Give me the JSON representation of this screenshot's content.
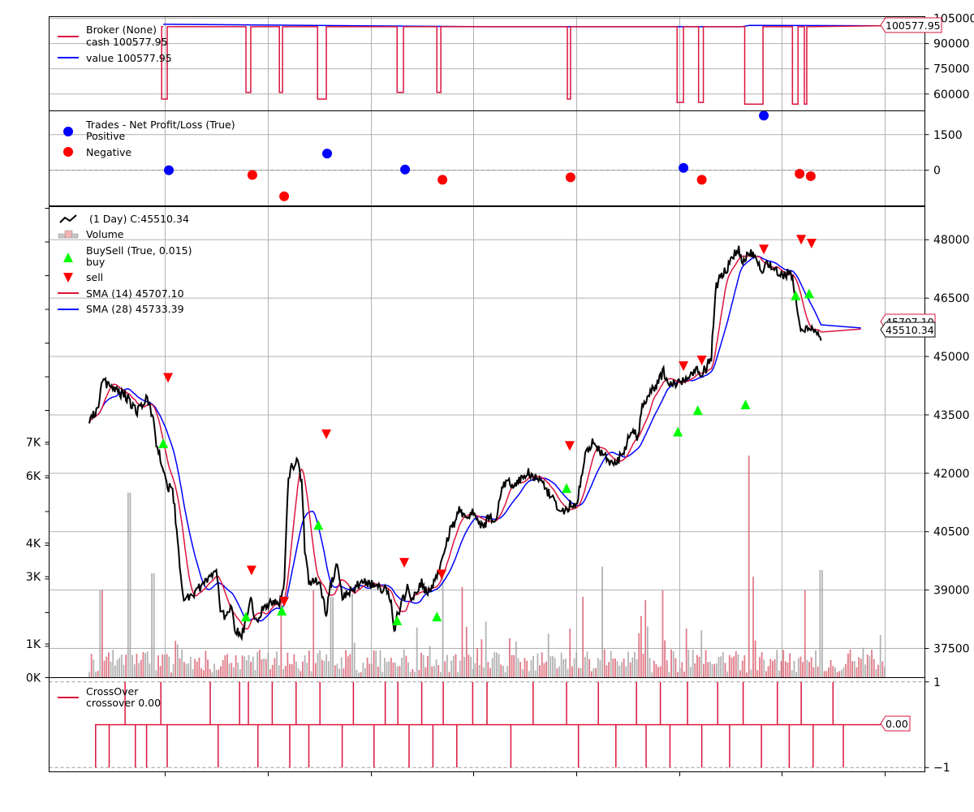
{
  "chart_data": [
    {
      "type": "line",
      "panel": "broker",
      "legend": {
        "title": "Broker (None)",
        "cash_label": "cash 100577.95",
        "value_label": "value 100577.95"
      },
      "badge_label": "100577.95",
      "y_ticks": [
        "105000",
        "90000",
        "75000",
        "60000"
      ],
      "y_tick_values": [
        105000,
        90000,
        75000,
        60000
      ],
      "ylim": [
        50000,
        106000
      ],
      "cash_base": 100000,
      "final_value": 100577.95,
      "dips": [
        {
          "start": 0.091,
          "end": 0.098,
          "low": 57000
        },
        {
          "start": 0.197,
          "end": 0.203,
          "low": 61000
        },
        {
          "start": 0.239,
          "end": 0.243,
          "low": 61000
        },
        {
          "start": 0.287,
          "end": 0.298,
          "low": 57000
        },
        {
          "start": 0.387,
          "end": 0.395,
          "low": 61000
        },
        {
          "start": 0.437,
          "end": 0.442,
          "low": 61000
        },
        {
          "start": 0.601,
          "end": 0.605,
          "low": 57000
        },
        {
          "start": 0.739,
          "end": 0.747,
          "low": 55000
        },
        {
          "start": 0.766,
          "end": 0.772,
          "low": 55000
        },
        {
          "start": 0.824,
          "end": 0.847,
          "low": 54000
        },
        {
          "start": 0.884,
          "end": 0.891,
          "low": 54000
        },
        {
          "start": 0.899,
          "end": 0.902,
          "low": 54000
        }
      ]
    },
    {
      "type": "scatter",
      "panel": "trades",
      "legend": {
        "title": "Trades - Net Profit/Loss (True)",
        "positive_label": "Positive",
        "negative_label": "Negative"
      },
      "y_ticks": [
        "1500",
        "0"
      ],
      "y_tick_values": [
        1500,
        0
      ],
      "ylim": [
        -1500,
        2500
      ],
      "positive": [
        {
          "x": 0.1,
          "y": 0
        },
        {
          "x": 0.299,
          "y": 700
        },
        {
          "x": 0.397,
          "y": 30
        },
        {
          "x": 0.747,
          "y": 100
        },
        {
          "x": 0.848,
          "y": 2300
        }
      ],
      "negative": [
        {
          "x": 0.205,
          "y": -200
        },
        {
          "x": 0.245,
          "y": -1100
        },
        {
          "x": 0.444,
          "y": -400
        },
        {
          "x": 0.605,
          "y": -300
        },
        {
          "x": 0.77,
          "y": -400
        },
        {
          "x": 0.893,
          "y": -150
        },
        {
          "x": 0.907,
          "y": -250
        }
      ]
    },
    {
      "type": "line",
      "panel": "price",
      "legend": {
        "price_label": " (1 Day) C:45510.34",
        "volume_label": "Volume",
        "buysell_label": "BuySell (True, 0.015)",
        "buy_label": "buy",
        "sell_label": "sell",
        "sma14_label": "SMA (14) 45707.10",
        "sma28_label": "SMA (28) 45733.39"
      },
      "y_ticks_right": [
        "48000",
        "46500",
        "45000",
        "43500",
        "42000",
        "40500",
        "39000",
        "37500"
      ],
      "y_tick_values_right": [
        48000,
        46500,
        45000,
        43500,
        42000,
        40500,
        39000,
        37500
      ],
      "ylim_right": [
        36750,
        48850
      ],
      "y_ticks_left": [
        "7K",
        "6K",
        "4K",
        "3K",
        "1K",
        "0K"
      ],
      "y_tick_values_left": [
        7000,
        6000,
        4000,
        3000,
        1000,
        0
      ],
      "ylim_left": [
        0,
        14000
      ],
      "sma14_badge": "45707.10",
      "close_badge": "45510.34",
      "close_keypoints": [
        [
          0.0,
          43400
        ],
        [
          0.012,
          43700
        ],
        [
          0.016,
          44400
        ],
        [
          0.028,
          44200
        ],
        [
          0.045,
          44000
        ],
        [
          0.06,
          43600
        ],
        [
          0.072,
          43900
        ],
        [
          0.08,
          43500
        ],
        [
          0.085,
          42700
        ],
        [
          0.092,
          42200
        ],
        [
          0.099,
          41500
        ],
        [
          0.103,
          41800
        ],
        [
          0.107,
          41200
        ],
        [
          0.113,
          39800
        ],
        [
          0.118,
          38800
        ],
        [
          0.125,
          38800
        ],
        [
          0.135,
          39000
        ],
        [
          0.15,
          39300
        ],
        [
          0.16,
          39500
        ],
        [
          0.165,
          38500
        ],
        [
          0.172,
          38200
        ],
        [
          0.178,
          38700
        ],
        [
          0.183,
          38000
        ],
        [
          0.191,
          37800
        ],
        [
          0.196,
          38100
        ],
        [
          0.202,
          38800
        ],
        [
          0.21,
          38200
        ],
        [
          0.22,
          38600
        ],
        [
          0.232,
          38700
        ],
        [
          0.24,
          38700
        ],
        [
          0.245,
          39200
        ],
        [
          0.25,
          41800
        ],
        [
          0.255,
          42200
        ],
        [
          0.262,
          42300
        ],
        [
          0.267,
          41800
        ],
        [
          0.271,
          40000
        ],
        [
          0.276,
          39200
        ],
        [
          0.285,
          39300
        ],
        [
          0.292,
          39000
        ],
        [
          0.298,
          38400
        ],
        [
          0.305,
          39300
        ],
        [
          0.312,
          39600
        ],
        [
          0.318,
          38800
        ],
        [
          0.325,
          38900
        ],
        [
          0.335,
          39100
        ],
        [
          0.345,
          39200
        ],
        [
          0.36,
          39100
        ],
        [
          0.372,
          39000
        ],
        [
          0.38,
          38700
        ],
        [
          0.383,
          37900
        ],
        [
          0.388,
          38400
        ],
        [
          0.394,
          38700
        ],
        [
          0.4,
          39100
        ],
        [
          0.405,
          38800
        ],
        [
          0.412,
          38900
        ],
        [
          0.418,
          39200
        ],
        [
          0.422,
          39000
        ],
        [
          0.43,
          39000
        ],
        [
          0.437,
          39300
        ],
        [
          0.445,
          39900
        ],
        [
          0.45,
          40300
        ],
        [
          0.455,
          40600
        ],
        [
          0.46,
          40700
        ],
        [
          0.466,
          41100
        ],
        [
          0.472,
          40900
        ],
        [
          0.48,
          41000
        ],
        [
          0.488,
          40800
        ],
        [
          0.495,
          40600
        ],
        [
          0.503,
          40900
        ],
        [
          0.51,
          40700
        ],
        [
          0.518,
          41600
        ],
        [
          0.525,
          41800
        ],
        [
          0.535,
          41700
        ],
        [
          0.545,
          41900
        ],
        [
          0.552,
          42000
        ],
        [
          0.56,
          41900
        ],
        [
          0.57,
          41700
        ],
        [
          0.58,
          41400
        ],
        [
          0.588,
          41100
        ],
        [
          0.595,
          41000
        ],
        [
          0.605,
          41200
        ],
        [
          0.612,
          41100
        ],
        [
          0.618,
          41800
        ],
        [
          0.624,
          42500
        ],
        [
          0.632,
          42800
        ],
        [
          0.64,
          42600
        ],
        [
          0.65,
          42400
        ],
        [
          0.656,
          42200
        ],
        [
          0.663,
          42300
        ],
        [
          0.67,
          42500
        ],
        [
          0.678,
          42900
        ],
        [
          0.684,
          43100
        ],
        [
          0.69,
          42900
        ],
        [
          0.695,
          43800
        ],
        [
          0.703,
          44000
        ],
        [
          0.71,
          44200
        ],
        [
          0.716,
          44400
        ],
        [
          0.722,
          44600
        ],
        [
          0.73,
          44300
        ],
        [
          0.738,
          44300
        ],
        [
          0.746,
          44400
        ],
        [
          0.754,
          44500
        ],
        [
          0.762,
          44700
        ],
        [
          0.77,
          44600
        ],
        [
          0.776,
          44700
        ],
        [
          0.782,
          45000
        ],
        [
          0.787,
          46700
        ],
        [
          0.792,
          47000
        ],
        [
          0.8,
          47200
        ],
        [
          0.808,
          47500
        ],
        [
          0.816,
          47800
        ],
        [
          0.822,
          47400
        ],
        [
          0.83,
          47700
        ],
        [
          0.838,
          47600
        ],
        [
          0.845,
          47200
        ],
        [
          0.852,
          47400
        ],
        [
          0.86,
          47300
        ],
        [
          0.868,
          47100
        ],
        [
          0.876,
          47100
        ],
        [
          0.882,
          47200
        ],
        [
          0.887,
          46600
        ],
        [
          0.892,
          45900
        ],
        [
          0.896,
          45600
        ],
        [
          0.905,
          45800
        ],
        [
          0.92,
          45510
        ]
      ],
      "buy_markers": [
        {
          "x": 0.093,
          "y": 42750
        },
        {
          "x": 0.197,
          "y": 38300
        },
        {
          "x": 0.242,
          "y": 38450
        },
        {
          "x": 0.288,
          "y": 40650
        },
        {
          "x": 0.387,
          "y": 38200
        },
        {
          "x": 0.437,
          "y": 38300
        },
        {
          "x": 0.6,
          "y": 41600
        },
        {
          "x": 0.74,
          "y": 43050
        },
        {
          "x": 0.765,
          "y": 43600
        },
        {
          "x": 0.825,
          "y": 43750
        },
        {
          "x": 0.888,
          "y": 46550
        },
        {
          "x": 0.905,
          "y": 46600
        }
      ],
      "sell_markers": [
        {
          "x": 0.099,
          "y": 44450
        },
        {
          "x": 0.204,
          "y": 39500
        },
        {
          "x": 0.245,
          "y": 38700
        },
        {
          "x": 0.298,
          "y": 43000
        },
        {
          "x": 0.396,
          "y": 39700
        },
        {
          "x": 0.443,
          "y": 39400
        },
        {
          "x": 0.604,
          "y": 42700
        },
        {
          "x": 0.747,
          "y": 44750
        },
        {
          "x": 0.77,
          "y": 44900
        },
        {
          "x": 0.848,
          "y": 47750
        },
        {
          "x": 0.895,
          "y": 48000
        },
        {
          "x": 0.908,
          "y": 47900
        }
      ],
      "volume_spikes": [
        {
          "x": 0.015,
          "v": 2600
        },
        {
          "x": 0.05,
          "v": 5500
        },
        {
          "x": 0.08,
          "v": 3100
        },
        {
          "x": 0.24,
          "v": 2300
        },
        {
          "x": 0.283,
          "v": 2600
        },
        {
          "x": 0.305,
          "v": 2400
        },
        {
          "x": 0.33,
          "v": 2500
        },
        {
          "x": 0.445,
          "v": 3100
        },
        {
          "x": 0.47,
          "v": 2700
        },
        {
          "x": 0.62,
          "v": 2400
        },
        {
          "x": 0.645,
          "v": 3300
        },
        {
          "x": 0.7,
          "v": 2300
        },
        {
          "x": 0.72,
          "v": 2600
        },
        {
          "x": 0.83,
          "v": 6600
        },
        {
          "x": 0.835,
          "v": 3000
        },
        {
          "x": 0.9,
          "v": 2600
        },
        {
          "x": 0.92,
          "v": 3200
        }
      ]
    },
    {
      "type": "line",
      "panel": "crossover",
      "legend": {
        "title": "CrossOver",
        "value_label": "crossover 0.00"
      },
      "badge_label": "0.00",
      "y_ticks": [
        "1",
        "−1"
      ],
      "y_tick_values": [
        1,
        -1
      ],
      "ylim": [
        -1.1,
        1.1
      ],
      "events": [
        {
          "x": 0.008,
          "d": -1
        },
        {
          "x": 0.025,
          "d": -1
        },
        {
          "x": 0.045,
          "d": 1
        },
        {
          "x": 0.058,
          "d": -1
        },
        {
          "x": 0.072,
          "d": -1
        },
        {
          "x": 0.09,
          "d": 1
        },
        {
          "x": 0.098,
          "d": -1
        },
        {
          "x": 0.152,
          "d": 1
        },
        {
          "x": 0.162,
          "d": -1
        },
        {
          "x": 0.189,
          "d": 1
        },
        {
          "x": 0.2,
          "d": 1
        },
        {
          "x": 0.212,
          "d": -1
        },
        {
          "x": 0.23,
          "d": 1
        },
        {
          "x": 0.252,
          "d": -1
        },
        {
          "x": 0.26,
          "d": 1
        },
        {
          "x": 0.276,
          "d": -1
        },
        {
          "x": 0.29,
          "d": 1
        },
        {
          "x": 0.318,
          "d": -1
        },
        {
          "x": 0.332,
          "d": 1
        },
        {
          "x": 0.358,
          "d": -1
        },
        {
          "x": 0.372,
          "d": 1
        },
        {
          "x": 0.388,
          "d": 1
        },
        {
          "x": 0.402,
          "d": -1
        },
        {
          "x": 0.418,
          "d": 1
        },
        {
          "x": 0.432,
          "d": -1
        },
        {
          "x": 0.445,
          "d": 1
        },
        {
          "x": 0.462,
          "d": -1
        },
        {
          "x": 0.482,
          "d": 1
        },
        {
          "x": 0.5,
          "d": 1
        },
        {
          "x": 0.53,
          "d": -1
        },
        {
          "x": 0.558,
          "d": 1
        },
        {
          "x": 0.6,
          "d": 1
        },
        {
          "x": 0.615,
          "d": -1
        },
        {
          "x": 0.64,
          "d": 1
        },
        {
          "x": 0.662,
          "d": -1
        },
        {
          "x": 0.688,
          "d": 1
        },
        {
          "x": 0.7,
          "d": -1
        },
        {
          "x": 0.718,
          "d": 1
        },
        {
          "x": 0.73,
          "d": -1
        },
        {
          "x": 0.752,
          "d": 1
        },
        {
          "x": 0.77,
          "d": -1
        },
        {
          "x": 0.79,
          "d": 1
        },
        {
          "x": 0.805,
          "d": -1
        },
        {
          "x": 0.822,
          "d": 1
        },
        {
          "x": 0.845,
          "d": -1
        },
        {
          "x": 0.865,
          "d": 1
        },
        {
          "x": 0.88,
          "d": -1
        },
        {
          "x": 0.895,
          "d": 1
        },
        {
          "x": 0.91,
          "d": -1
        },
        {
          "x": 0.935,
          "d": 1
        },
        {
          "x": 0.948,
          "d": -1
        }
      ]
    }
  ]
}
